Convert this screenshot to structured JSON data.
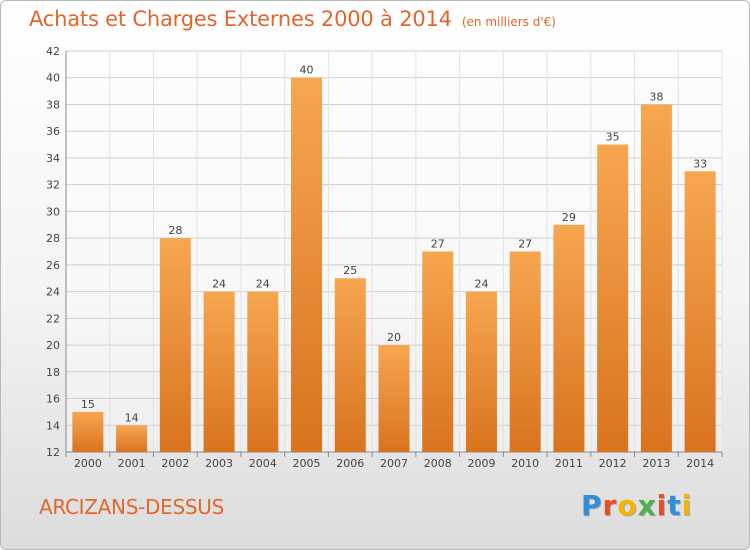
{
  "header": {
    "title": "Achats et Charges Externes 2000 à 2014",
    "subtitle": "(en milliers d'€)"
  },
  "footer": {
    "commune": "ARCIZANS-DESSUS",
    "logo_letters": [
      "P",
      "r",
      "o",
      "x",
      "i",
      "t",
      "i"
    ],
    "logo_colors": [
      "#2f8fd8",
      "#e84c2b",
      "#f4b400",
      "#4caf50",
      "#e84c2b",
      "#2f8fd8",
      "#f4b400"
    ]
  },
  "colors": {
    "bar_light": "#f7a650",
    "bar_dark": "#d9731e",
    "accent": "#e0672d"
  },
  "chart_data": {
    "type": "bar",
    "categories": [
      "2000",
      "2001",
      "2002",
      "2003",
      "2004",
      "2005",
      "2006",
      "2007",
      "2008",
      "2009",
      "2010",
      "2011",
      "2012",
      "2013",
      "2014"
    ],
    "values": [
      15,
      14,
      28,
      24,
      24,
      40,
      25,
      20,
      27,
      24,
      27,
      29,
      35,
      38,
      33
    ],
    "ylim": [
      12,
      42
    ],
    "yticks": [
      12,
      14,
      16,
      18,
      20,
      22,
      24,
      26,
      28,
      30,
      32,
      34,
      36,
      38,
      40,
      42
    ],
    "grid": true,
    "legend": "none",
    "xlabel": "",
    "ylabel": ""
  }
}
